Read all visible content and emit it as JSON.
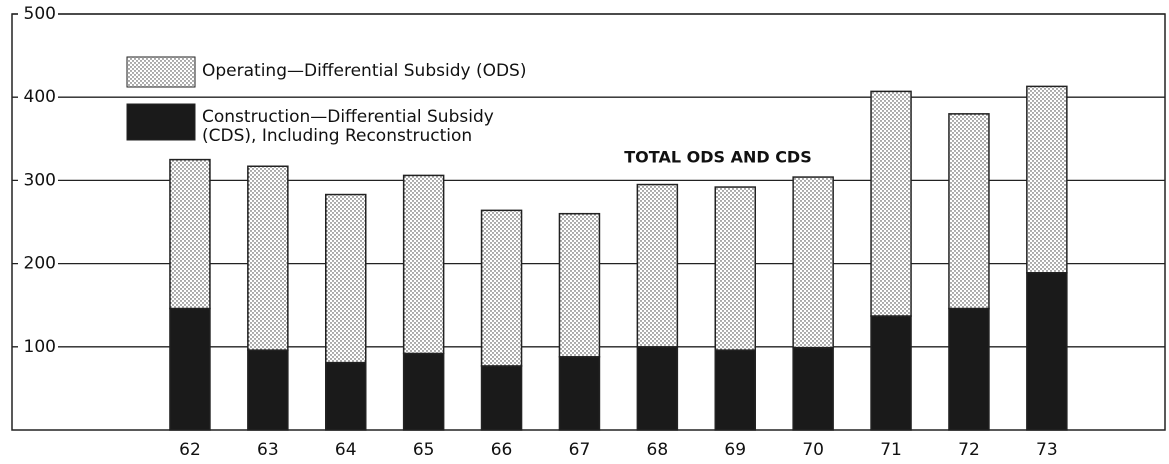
{
  "chart_data": {
    "type": "stacked_bar",
    "categories": [
      "62",
      "63",
      "64",
      "65",
      "66",
      "67",
      "68",
      "69",
      "70",
      "71",
      "72",
      "73"
    ],
    "series": [
      {
        "name": "Construction—Differential Subsidy (CDS), Including Reconstruction",
        "color": "#1a1a1a",
        "values": [
          146,
          96,
          81,
          92,
          77,
          88,
          100,
          96,
          99,
          137,
          146,
          189
        ]
      },
      {
        "name": "Operating—Differential Subsidy (ODS)",
        "color": "#ffffff",
        "values": [
          179,
          221,
          202,
          214,
          187,
          172,
          195,
          196,
          205,
          270,
          234,
          224
        ]
      }
    ],
    "annotation": "TOTAL ODS AND CDS",
    "ylim": [
      0,
      500
    ],
    "yticks": [
      100,
      200,
      300,
      400,
      500
    ],
    "grid": true
  }
}
